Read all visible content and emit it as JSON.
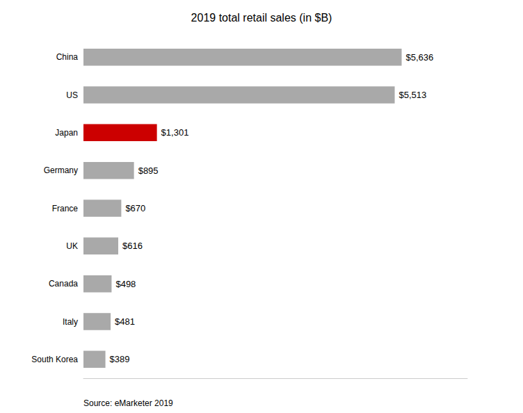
{
  "chart_data": {
    "type": "bar",
    "orientation": "horizontal",
    "title": "2019 total retail sales (in $B)",
    "categories": [
      "China",
      "US",
      "Japan",
      "Germany",
      "France",
      "UK",
      "Canada",
      "Italy",
      "South Korea"
    ],
    "values": [
      5636,
      5513,
      1301,
      895,
      670,
      616,
      498,
      481,
      389
    ],
    "value_labels": [
      "$5,636",
      "$5,513",
      "$1,301",
      "$895",
      "$670",
      "$616",
      "$498",
      "$481",
      "$389"
    ],
    "colors": [
      "#a9a9a9",
      "#a9a9a9",
      "#cc0000",
      "#a9a9a9",
      "#a9a9a9",
      "#a9a9a9",
      "#a9a9a9",
      "#a9a9a9",
      "#a9a9a9"
    ],
    "data_labels": true,
    "xlim": [
      0,
      6800
    ],
    "grid": false,
    "tick_labels": "y",
    "annotations": [
      "Source: eMarketer 2019"
    ]
  }
}
